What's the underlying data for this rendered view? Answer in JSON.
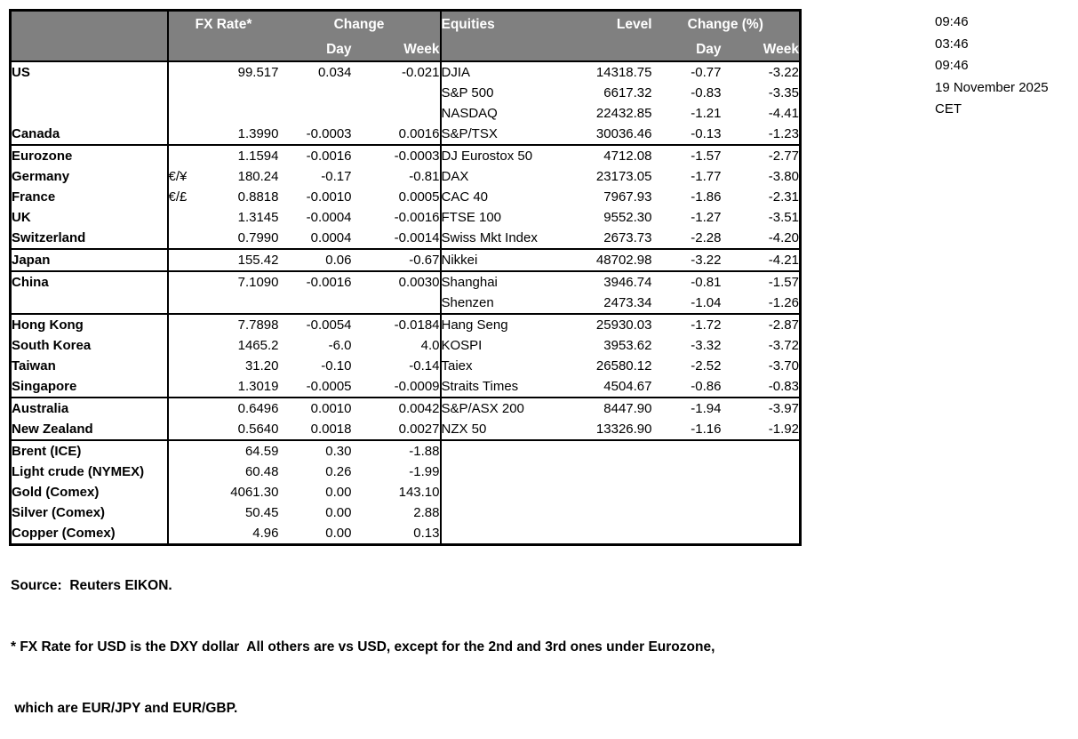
{
  "colors": {
    "header_bg": "#808080",
    "header_text": "#ffffff",
    "border": "#000000"
  },
  "meta": {
    "timestamps": [
      "09:46",
      "03:46",
      "09:46"
    ],
    "date": "19 November 2025",
    "timezone": "CET"
  },
  "table": {
    "fx_header": {
      "rate_label": "FX Rate*",
      "change_label": "Change",
      "day_label": "Day",
      "week_label": "Week"
    },
    "eq_header": {
      "name_label": "Equities",
      "level_label": "Level",
      "change_label": "Change (%)",
      "day_label": "Day",
      "week_label": "Week"
    },
    "rows": [
      {
        "country": "US",
        "sym": "",
        "rate": "99.517",
        "day": "0.034",
        "week": "-0.021",
        "eq": "DJIA",
        "level": "14318.75",
        "eqd": "-0.77",
        "eqw": "-3.22",
        "sep": false
      },
      {
        "country": "",
        "sym": "",
        "rate": "",
        "day": "",
        "week": "",
        "eq": "S&P 500",
        "level": "6617.32",
        "eqd": "-0.83",
        "eqw": "-3.35",
        "sep": false
      },
      {
        "country": "",
        "sym": "",
        "rate": "",
        "day": "",
        "week": "",
        "eq": "NASDAQ",
        "level": "22432.85",
        "eqd": "-1.21",
        "eqw": "-4.41",
        "sep": false
      },
      {
        "country": "Canada",
        "sym": "",
        "rate": "1.3990",
        "day": "-0.0003",
        "week": "0.0016",
        "eq": "S&P/TSX",
        "level": "30036.46",
        "eqd": "-0.13",
        "eqw": "-1.23",
        "sep": false
      },
      {
        "country": "Eurozone",
        "sym": "",
        "rate": "1.1594",
        "day": "-0.0016",
        "week": "-0.0003",
        "eq": "DJ Eurostox 50",
        "level": "4712.08",
        "eqd": "-1.57",
        "eqw": "-2.77",
        "sep": true
      },
      {
        "country": "  Germany",
        "sym": "€/¥",
        "rate": "180.24",
        "day": "-0.17",
        "week": "-0.81",
        "eq": "DAX",
        "level": "23173.05",
        "eqd": "-1.77",
        "eqw": "-3.80",
        "sep": false
      },
      {
        "country": "  France",
        "sym": "€/£",
        "rate": "0.8818",
        "day": "-0.0010",
        "week": "0.0005",
        "eq": "CAC 40",
        "level": "7967.93",
        "eqd": "-1.86",
        "eqw": "-2.31",
        "sep": false
      },
      {
        "country": "UK",
        "sym": "",
        "rate": "1.3145",
        "day": "-0.0004",
        "week": "-0.0016",
        "eq": "FTSE 100",
        "level": "9552.30",
        "eqd": "-1.27",
        "eqw": "-3.51",
        "sep": false
      },
      {
        "country": "Switzerland",
        "sym": "",
        "rate": "0.7990",
        "day": "0.0004",
        "week": "-0.0014",
        "eq": "Swiss Mkt Index",
        "level": "2673.73",
        "eqd": "-2.28",
        "eqw": "-4.20",
        "sep": false
      },
      {
        "country": "Japan",
        "sym": "",
        "rate": "155.42",
        "day": "0.06",
        "week": "-0.67",
        "eq": "Nikkei",
        "level": "48702.98",
        "eqd": "-3.22",
        "eqw": "-4.21",
        "sep": true
      },
      {
        "country": "China",
        "sym": "",
        "rate": "7.1090",
        "day": "-0.0016",
        "week": "0.0030",
        "eq": "Shanghai",
        "level": "3946.74",
        "eqd": "-0.81",
        "eqw": "-1.57",
        "sep": true
      },
      {
        "country": "",
        "sym": "",
        "rate": "",
        "day": "",
        "week": "",
        "eq": "Shenzen",
        "level": "2473.34",
        "eqd": "-1.04",
        "eqw": "-1.26",
        "sep": false
      },
      {
        "country": "Hong Kong",
        "sym": "",
        "rate": "7.7898",
        "day": "-0.0054",
        "week": "-0.0184",
        "eq": "Hang Seng",
        "level": "25930.03",
        "eqd": "-1.72",
        "eqw": "-2.87",
        "sep": true
      },
      {
        "country": "South Korea",
        "sym": "",
        "rate": "1465.2",
        "day": "-6.0",
        "week": "4.0",
        "eq": "KOSPI",
        "level": "3953.62",
        "eqd": "-3.32",
        "eqw": "-3.72",
        "sep": false
      },
      {
        "country": "Taiwan",
        "sym": "",
        "rate": "31.20",
        "day": "-0.10",
        "week": "-0.14",
        "eq": "Taiex",
        "level": "26580.12",
        "eqd": "-2.52",
        "eqw": "-3.70",
        "sep": false
      },
      {
        "country": "Singapore",
        "sym": "",
        "rate": "1.3019",
        "day": "-0.0005",
        "week": "-0.0009",
        "eq": "Straits Times",
        "level": "4504.67",
        "eqd": "-0.86",
        "eqw": "-0.83",
        "sep": false
      },
      {
        "country": "Australia",
        "sym": "",
        "rate": "0.6496",
        "day": "0.0010",
        "week": "0.0042",
        "eq": "S&P/ASX  200",
        "level": "8447.90",
        "eqd": "-1.94",
        "eqw": "-3.97",
        "sep": true
      },
      {
        "country": "New Zealand",
        "sym": "",
        "rate": "0.5640",
        "day": "0.0018",
        "week": "0.0027",
        "eq": "NZX 50",
        "level": "13326.90",
        "eqd": "-1.16",
        "eqw": "-1.92",
        "sep": false
      },
      {
        "country": "Brent (ICE)",
        "sym": "",
        "rate": "64.59",
        "day": "0.30",
        "week": "-1.88",
        "eq": "",
        "level": "",
        "eqd": "",
        "eqw": "",
        "sep": true
      },
      {
        "country": "Light crude (NYMEX)",
        "sym": "",
        "rate": "60.48",
        "day": "0.26",
        "week": "-1.99",
        "eq": "",
        "level": "",
        "eqd": "",
        "eqw": "",
        "sep": false
      },
      {
        "country": "Gold (Comex)",
        "sym": "",
        "rate": "4061.30",
        "day": "0.00",
        "week": "143.10",
        "eq": "",
        "level": "",
        "eqd": "",
        "eqw": "",
        "sep": false
      },
      {
        "country": "Silver (Comex)",
        "sym": "",
        "rate": "50.45",
        "day": "0.00",
        "week": "2.88",
        "eq": "",
        "level": "",
        "eqd": "",
        "eqw": "",
        "sep": false
      },
      {
        "country": "Copper (Comex)",
        "sym": "",
        "rate": "4.96",
        "day": "0.00",
        "week": "0.13",
        "eq": "",
        "level": "",
        "eqd": "",
        "eqw": "",
        "sep": false
      }
    ]
  },
  "footer": {
    "source": "Source:  Reuters EIKON.",
    "note1": "* FX Rate for USD is the DXY dollar  All others are vs USD, except for the 2nd and 3rd ones under Eurozone,",
    "note2": " which are EUR/JPY and EUR/GBP."
  }
}
